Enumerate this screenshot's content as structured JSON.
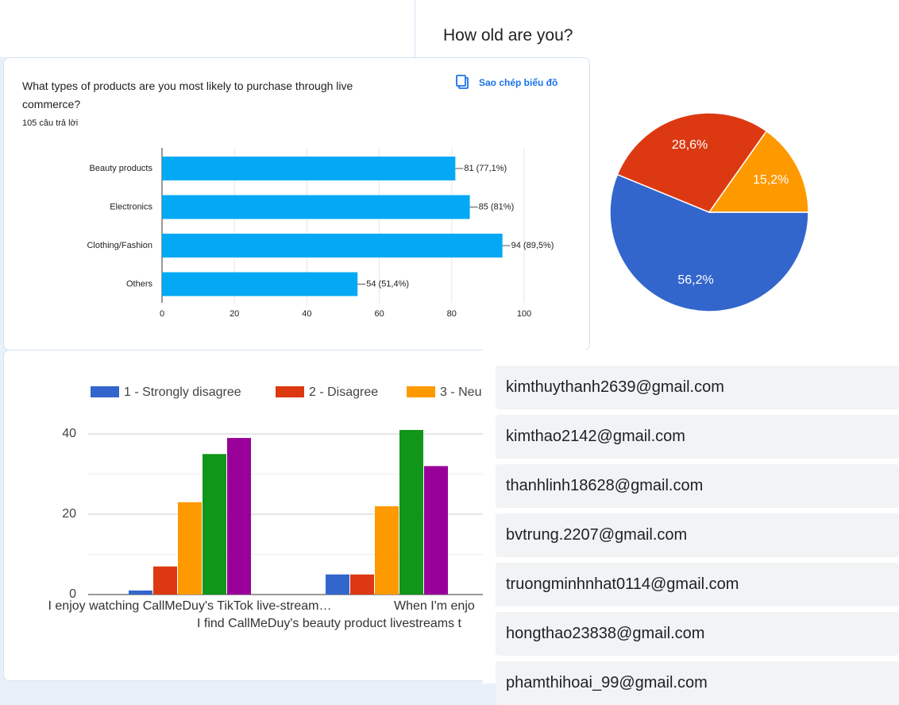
{
  "age_panel": {
    "title": "How old are you?",
    "chart_data": {
      "type": "pie",
      "values": [
        56.2,
        28.6,
        15.2
      ],
      "value_labels": [
        "56,2%",
        "28,6%",
        "15,2%"
      ],
      "colors": [
        "#3366cc",
        "#dc3912",
        "#ff9900"
      ]
    }
  },
  "products_panel": {
    "title": "What types of products are you most likely to purchase through live commerce?",
    "responses": "105 câu trả lời",
    "copy_button": "Sao chép biểu đồ",
    "chart_data": {
      "type": "bar",
      "horizontal": true,
      "categories": [
        "Beauty products",
        "Electronics",
        "Clothing/Fashion",
        "Others"
      ],
      "values": [
        81,
        85,
        94,
        54
      ],
      "value_labels": [
        "81 (77,1%)",
        "85 (81%)",
        "94 (89,5%)",
        "54 (51,4%)"
      ],
      "color": "#03a9f4",
      "xlim": [
        0,
        100
      ],
      "xticks": [
        0,
        20,
        40,
        60,
        80,
        100
      ],
      "grid": true
    }
  },
  "agreement_panel": {
    "chart_data": {
      "type": "grouped_bar",
      "categories": [
        "I enjoy watching CallMeDuy's TikTok live-stream…",
        "I find CallMeDuy's beauty product livestreams t",
        "When I'm enjo"
      ],
      "series": [
        {
          "name": "1 - Strongly disagree",
          "color": "#3366cc",
          "values": [
            1,
            5,
            null
          ]
        },
        {
          "name": "2 - Disagree",
          "color": "#dc3912",
          "values": [
            7,
            5,
            null
          ]
        },
        {
          "name": "3 - Neu",
          "color": "#ff9900",
          "values": [
            23,
            22,
            null
          ]
        },
        {
          "color": "#109618",
          "values": [
            35,
            41,
            null
          ]
        },
        {
          "color": "#990099",
          "values": [
            39,
            32,
            null
          ]
        }
      ],
      "ylim": [
        0,
        40
      ],
      "yticks": [
        0,
        20,
        40
      ],
      "minor_grid": [
        10,
        30
      ],
      "grid": true
    }
  },
  "emails": [
    "kimthuythanh2639@gmail.com",
    "kimthao2142@gmail.com",
    "thanhlinh18628@gmail.com",
    "bvtrung.2207@gmail.com",
    "truongminhnhat0114@gmail.com",
    "hongthao23838@gmail.com",
    "phamthihoai_99@gmail.com"
  ]
}
